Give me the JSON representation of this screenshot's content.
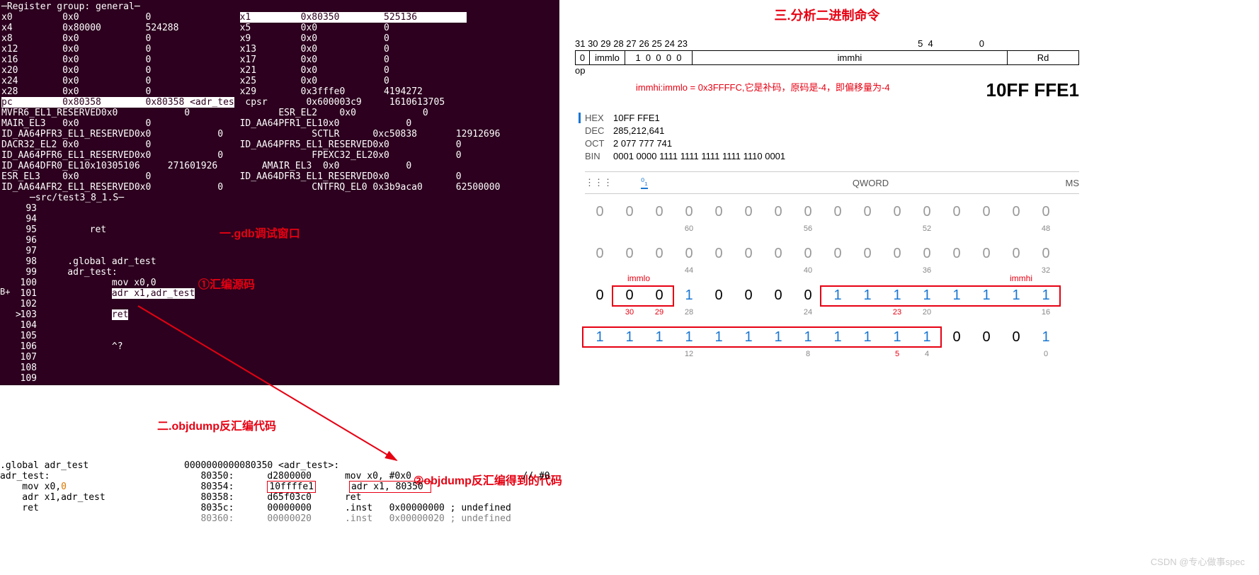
{
  "gdb": {
    "group_title": "─Register group: general─",
    "registers": [
      [
        {
          "r": "x0",
          "h": "0x0",
          "d": "0"
        },
        {
          "r": "x1",
          "h": "0x80350",
          "d": "525136",
          "hl": true
        }
      ],
      [
        {
          "r": "x4",
          "h": "0x80000",
          "d": "524288"
        },
        {
          "r": "x5",
          "h": "0x0",
          "d": "0"
        }
      ],
      [
        {
          "r": "x8",
          "h": "0x0",
          "d": "0"
        },
        {
          "r": "x9",
          "h": "0x0",
          "d": "0"
        }
      ],
      [
        {
          "r": "x12",
          "h": "0x0",
          "d": "0"
        },
        {
          "r": "x13",
          "h": "0x0",
          "d": "0"
        }
      ],
      [
        {
          "r": "x16",
          "h": "0x0",
          "d": "0"
        },
        {
          "r": "x17",
          "h": "0x0",
          "d": "0"
        }
      ],
      [
        {
          "r": "x20",
          "h": "0x0",
          "d": "0"
        },
        {
          "r": "x21",
          "h": "0x0",
          "d": "0"
        }
      ],
      [
        {
          "r": "x24",
          "h": "0x0",
          "d": "0"
        },
        {
          "r": "x25",
          "h": "0x0",
          "d": "0"
        }
      ],
      [
        {
          "r": "x28",
          "h": "0x0",
          "d": "0"
        },
        {
          "r": "x29",
          "h": "0x3fffe0",
          "d": "4194272"
        }
      ],
      [
        {
          "r": "pc",
          "h": "0x80358",
          "d": "0x80358 <adr_tes",
          "hl": true,
          "special": "cpsr"
        },
        {
          "r": "cpsr",
          "h": "0x600003c9",
          "d": "1610613705"
        }
      ],
      [
        {
          "r": "MVFR6_EL1_RESERVED",
          "h": "0x0",
          "d": "0"
        },
        {
          "r": "ESR_EL2",
          "h": "0x0",
          "d": "0"
        }
      ],
      [
        {
          "r": "MAIR_EL3",
          "h": "0x0",
          "d": "0"
        },
        {
          "r": "ID_AA64PFR1_EL1",
          "h": "0x0",
          "d": "0"
        }
      ],
      [
        {
          "r": "ID_AA64PFR3_EL1_RESERVED",
          "h": "0x0",
          "d": "0"
        },
        {
          "r": "SCTLR",
          "h": "0xc50838",
          "d": "12912696"
        }
      ],
      [
        {
          "r": "DACR32_EL2",
          "h": "0x0",
          "d": "0"
        },
        {
          "r": "ID_AA64PFR5_EL1_RESERVED",
          "h": "0x0",
          "d": "0"
        }
      ],
      [
        {
          "r": "ID_AA64PFR6_EL1_RESERVED",
          "h": "0x0",
          "d": "0"
        },
        {
          "r": "FPEXC32_EL2",
          "h": "0x0",
          "d": "0"
        }
      ],
      [
        {
          "r": "ID_AA64DFR0_EL1",
          "h": "0x10305106",
          "d": "271601926"
        },
        {
          "r": "AMAIR_EL3",
          "h": "0x0",
          "d": "0"
        }
      ],
      [
        {
          "r": "ESR_EL3",
          "h": "0x0",
          "d": "0"
        },
        {
          "r": "ID_AA64DFR3_EL1_RESERVED",
          "h": "0x0",
          "d": "0"
        }
      ],
      [
        {
          "r": "ID_AA64AFR2_EL1_RESERVED",
          "h": "0x0",
          "d": "0"
        },
        {
          "r": "CNTFRQ_EL0",
          "h": "0x3b9aca0",
          "d": "62500000"
        }
      ]
    ],
    "src_title": "─src/test3_8_1.S─",
    "src_lines": [
      {
        "n": "93",
        "t": ""
      },
      {
        "n": "94",
        "t": ""
      },
      {
        "n": "95",
        "t": "        ret"
      },
      {
        "n": "96",
        "t": ""
      },
      {
        "n": "97",
        "t": ""
      },
      {
        "n": "98",
        "t": "    .global adr_test"
      },
      {
        "n": "99",
        "t": "    adr_test:"
      },
      {
        "n": "100",
        "t": "            mov x0,0"
      },
      {
        "n": "101",
        "t": "            ",
        "hl": "adr x1,adr_test"
      },
      {
        "n": "102",
        "t": ""
      },
      {
        "n": "103",
        "t": "            ",
        "hl": "ret",
        "cur": ">"
      },
      {
        "n": "104",
        "t": ""
      },
      {
        "n": "105",
        "t": ""
      },
      {
        "n": "106",
        "t": "            ^?"
      },
      {
        "n": "107",
        "t": ""
      },
      {
        "n": "108",
        "t": ""
      },
      {
        "n": "109",
        "t": ""
      }
    ],
    "b_plus": "B+"
  },
  "annot": {
    "gdb_window": "一.gdb调试窗口",
    "asm_src": "①汇编源码",
    "objdump_title": "二.objdump反汇编代码",
    "objdump_result": "②objdump反汇编得到的代码",
    "analyze_title": "三.分析二进制命令",
    "immlo_label": "immlo",
    "immhi_label": "immhi"
  },
  "objdump": {
    "src": [
      ".global adr_test",
      "adr_test:",
      "    mov x0,0",
      "    adr x1,adr_test",
      "",
      "    ret"
    ],
    "src_zero": "0",
    "disasm_header": "0000000000080350 <adr_test>:",
    "lines": [
      {
        "addr": "80350:",
        "hex": "d2800000",
        "op": "mov x0, #0x0",
        "comment": "// #0"
      },
      {
        "addr": "80354:",
        "hex": "10ffffe1",
        "op": "adr x1, 80350 <adr_test>",
        "boxed": true
      },
      {
        "addr": "80358:",
        "hex": "d65f03c0",
        "op": "ret"
      },
      {
        "addr": "8035c:",
        "hex": "00000000",
        "op": ".inst   0x00000000 ; undefined"
      },
      {
        "addr": "80360:",
        "hex": "00000020",
        "op": ".inst   0x00000020 ; undefined",
        "cut": true
      }
    ]
  },
  "right": {
    "bit_header": "31 30 29 28 27 26 25 24 23                                                                                          5  4                  0",
    "encoding": {
      "op": "0",
      "immlo": "immlo",
      "bits": "1  0  0  0  0",
      "immhi": "immhi",
      "rd": "Rd",
      "below": "op"
    },
    "immhi_note": "immhi:immlo = 0x3FFFFC,它是补码，原码是-4，即偏移量为-4",
    "hex_big": "10FF FFE1",
    "bases": {
      "HEX": "10FF FFE1",
      "DEC": "285,212,641",
      "OCT": "2 077 777 741",
      "BIN": "0001 0000 1111 1111 1111 1111 1110 0001"
    },
    "toolbar": {
      "kb": "⋮⋮⋮",
      "bit": "⁰₁",
      "center": "QWORD",
      "right": "MS"
    },
    "grid": {
      "rows": [
        {
          "bits": [
            "0",
            "0",
            "0",
            "0",
            "0",
            "0",
            "0",
            "0",
            "0",
            "0",
            "0",
            "0",
            "0",
            "0",
            "0",
            "0"
          ],
          "pos": [
            "",
            "",
            "",
            "60",
            "",
            "",
            "",
            "56",
            "",
            "",
            "",
            "52",
            "",
            "",
            "",
            "48"
          ],
          "grey": true
        },
        {
          "bits": [
            "0",
            "0",
            "0",
            "0",
            "0",
            "0",
            "0",
            "0",
            "0",
            "0",
            "0",
            "0",
            "0",
            "0",
            "0",
            "0"
          ],
          "pos": [
            "",
            "",
            "",
            "44",
            "",
            "",
            "",
            "40",
            "",
            "",
            "",
            "36",
            "",
            "",
            "",
            "32"
          ],
          "grey": true
        },
        {
          "bits": [
            "0",
            "0",
            "0",
            "1",
            "0",
            "0",
            "0",
            "0",
            "1",
            "1",
            "1",
            "1",
            "1",
            "1",
            "1",
            "1"
          ],
          "pos": [
            "",
            "30",
            "29",
            "28",
            "",
            "",
            "",
            "24",
            "",
            "",
            "23",
            "20",
            "",
            "",
            "",
            "16"
          ],
          "blue": [
            3,
            8,
            9,
            10,
            11,
            12,
            13,
            14,
            15
          ]
        },
        {
          "bits": [
            "1",
            "1",
            "1",
            "1",
            "1",
            "1",
            "1",
            "1",
            "1",
            "1",
            "1",
            "1",
            "0",
            "0",
            "0",
            "1"
          ],
          "pos": [
            "",
            "",
            "",
            "12",
            "",
            "",
            "",
            "8",
            "",
            "",
            "5",
            "4",
            "",
            "",
            "",
            "0"
          ],
          "blue": [
            0,
            1,
            2,
            3,
            4,
            5,
            6,
            7,
            8,
            9,
            10,
            11,
            15
          ]
        }
      ]
    },
    "pos_red": {
      "r30": "30",
      "r29": "29",
      "r23": "23",
      "r5": "5"
    }
  },
  "watermark": "CSDN @专心做事spec"
}
